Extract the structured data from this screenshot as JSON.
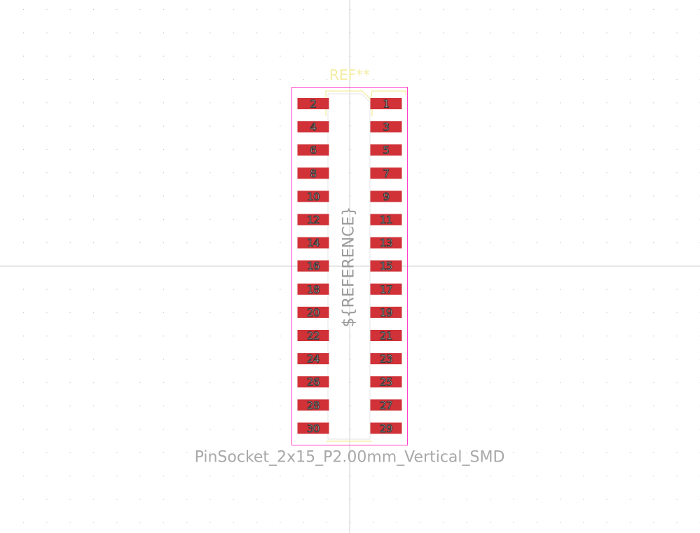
{
  "footprint": {
    "reference_label": "REF**",
    "value_label": "PinSocket_2x15_P2.00mm_Vertical_SMD",
    "fab_reference_label": "${REFERENCE}",
    "pad_numbers_right": [
      "1",
      "3",
      "5",
      "7",
      "9",
      "11",
      "13",
      "15",
      "17",
      "19",
      "21",
      "23",
      "25",
      "27",
      "29"
    ],
    "pad_numbers_left": [
      "2",
      "4",
      "6",
      "8",
      "10",
      "12",
      "14",
      "16",
      "18",
      "20",
      "22",
      "24",
      "26",
      "28",
      "30"
    ]
  },
  "colors": {
    "background": "#ffffff",
    "grid_dot": "#c8c8c8",
    "axis_line": "#d0d0d0",
    "courtyard": "#ff40c8",
    "silkscreen": "#f2eda1",
    "pad_fill": "#d03238",
    "reference_text": "#f2eda1",
    "value_text": "#a8a8a8",
    "fab_text": "#9a9a9a"
  }
}
